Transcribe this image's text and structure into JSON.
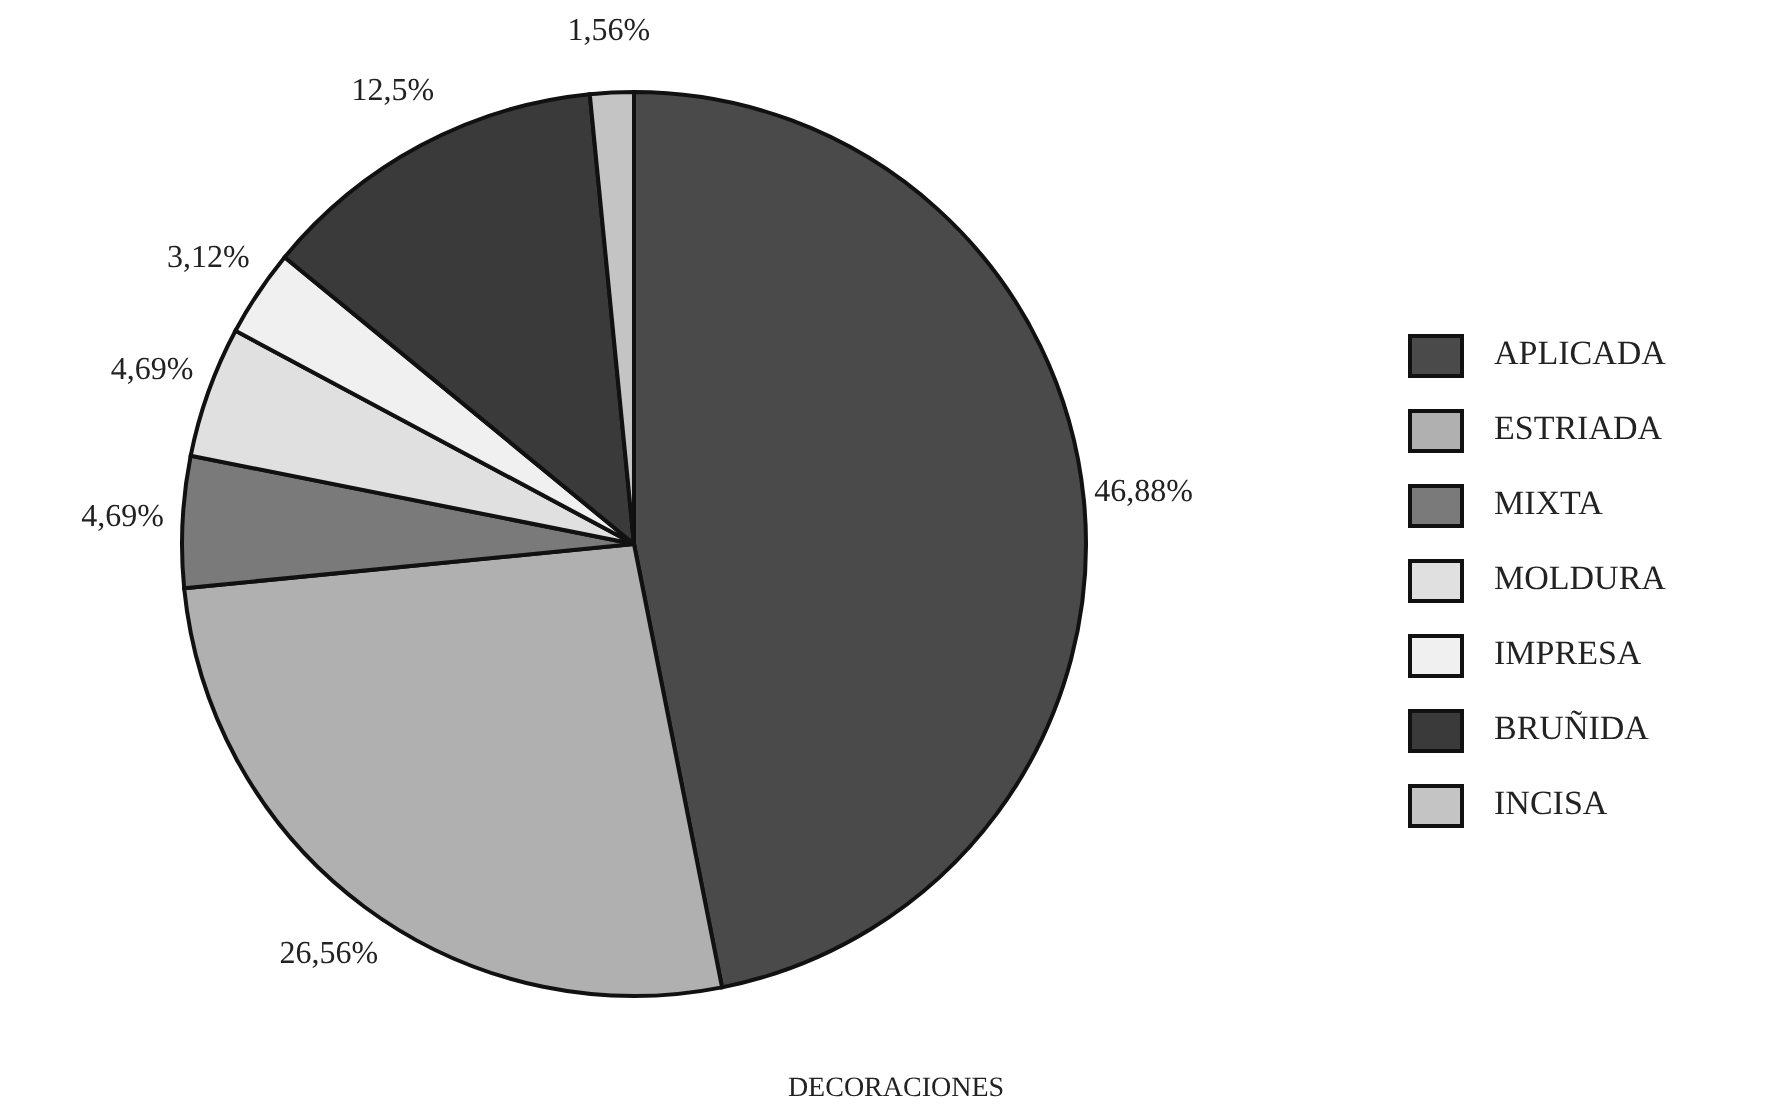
{
  "chart_data": {
    "type": "pie",
    "title": "DECORACIONES",
    "categories": [
      "APLICADA",
      "ESTRIADA",
      "MIXTA",
      "MOLDURA",
      "IMPRESA",
      "BRUÑIDA",
      "INCISA"
    ],
    "values": [
      46.88,
      26.56,
      4.69,
      4.69,
      3.12,
      12.5,
      1.56
    ],
    "value_labels": [
      "46,88%",
      "26,56%",
      "4,69%",
      "4,69%",
      "3,12%",
      "12,5%",
      "1,56%"
    ],
    "colors": [
      "#4a4a4a",
      "#b0b0b0",
      "#7a7a7a",
      "#e0e0e0",
      "#f0f0f0",
      "#3a3a3a",
      "#c4c4c4"
    ],
    "legend": "right"
  }
}
